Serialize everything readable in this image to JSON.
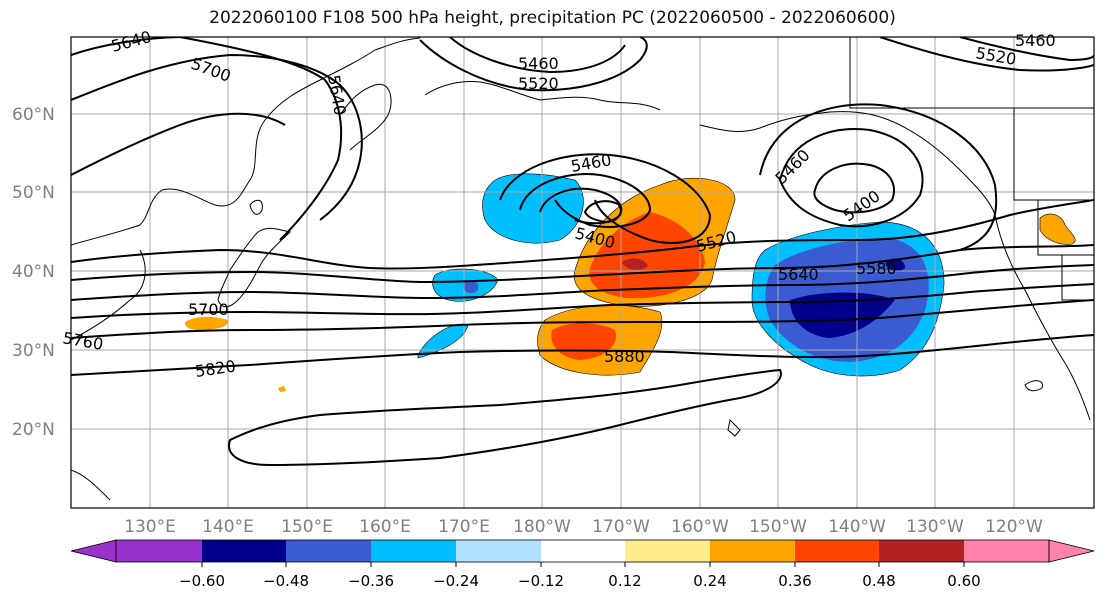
{
  "title": "2022060100 F108 500 hPa height, precipitation PC (2022060500 - 2022060600)",
  "lat_labels": [
    "60°N",
    "50°N",
    "40°N",
    "30°N",
    "20°N"
  ],
  "lon_labels": [
    "130°E",
    "140°E",
    "150°E",
    "160°E",
    "170°E",
    "180°W",
    "170°W",
    "160°W",
    "150°W",
    "140°W",
    "130°W",
    "120°W"
  ],
  "contour_labels": [
    "5640",
    "5700",
    "5640",
    "5460",
    "5520",
    "5520",
    "5460",
    "5460",
    "5400",
    "5460",
    "5400",
    "5520",
    "5580",
    "5640",
    "5700",
    "5760",
    "5820",
    "5880"
  ],
  "colorbar": {
    "colors": [
      "#9932cc",
      "#00008b",
      "#3a5bd1",
      "#00bfff",
      "#b0e2ff",
      "#ffffff",
      "#ffec8b",
      "#ffa500",
      "#ff4500",
      "#b22222",
      "#ff82ab"
    ],
    "ticks": [
      "−0.60",
      "−0.48",
      "−0.36",
      "−0.24",
      "−0.12",
      "0.12",
      "0.24",
      "0.36",
      "0.48",
      "0.60"
    ]
  }
}
